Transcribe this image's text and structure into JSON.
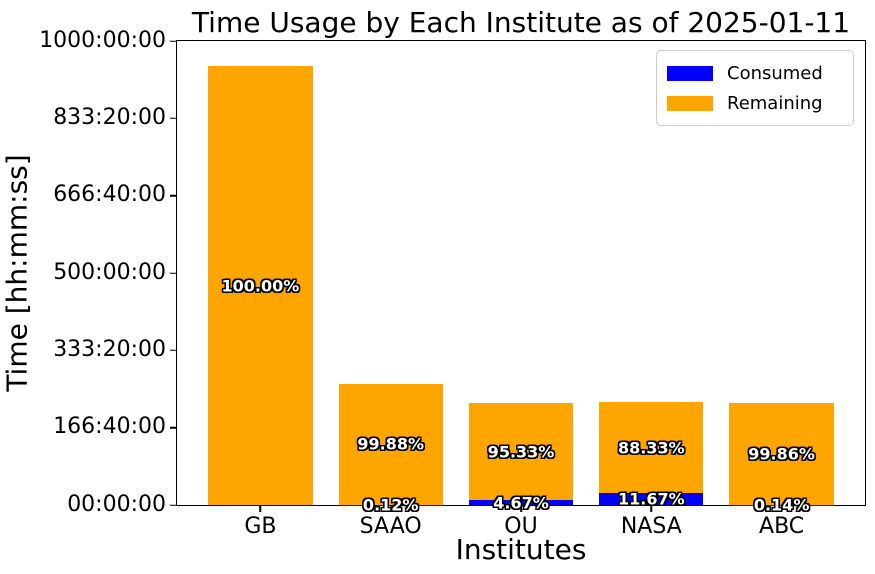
{
  "chart_data": {
    "type": "bar",
    "stacked": true,
    "title": "Time Usage by Each Institute as of 2025-01-11",
    "xlabel": "Institutes",
    "ylabel": "Time [hh:mm:ss]",
    "categories": [
      "GB",
      "SAAO",
      "OU",
      "NASA",
      "ABC"
    ],
    "series": [
      {
        "name": "Consumed",
        "color": "#0000ff",
        "percent": [
          0.0,
          0.12,
          4.67,
          11.67,
          0.14
        ],
        "percent_labels": [
          "",
          "0.12%",
          "4.67%",
          "11.67%",
          "0.14%"
        ],
        "values_hours": [
          0.0,
          0.31,
          10.27,
          25.91,
          0.31
        ]
      },
      {
        "name": "Remaining",
        "color": "#ffa500",
        "percent": [
          100.0,
          99.88,
          95.33,
          88.33,
          99.86
        ],
        "percent_labels": [
          "100.00%",
          "99.88%",
          "95.33%",
          "88.33%",
          "99.86%"
        ],
        "values_hours": [
          946.0,
          260.69,
          209.73,
          196.09,
          219.69
        ]
      }
    ],
    "totals_hours_estimated": [
      946,
      261,
      220,
      222,
      220
    ],
    "ylim_hours": [
      0,
      1000
    ],
    "yticks": [
      {
        "hours": 0,
        "label": "00:00:00"
      },
      {
        "hours": 166.6667,
        "label": "166:40:00"
      },
      {
        "hours": 333.3333,
        "label": "333:20:00"
      },
      {
        "hours": 500,
        "label": "500:00:00"
      },
      {
        "hours": 666.6667,
        "label": "666:40:00"
      },
      {
        "hours": 833.3333,
        "label": "833:20:00"
      },
      {
        "hours": 1000,
        "label": "1000:00:00"
      }
    ],
    "legend_position": "upper right",
    "grid": false,
    "bar_label_style": {
      "color": "#ffffff",
      "outline": "#000000",
      "bold": true
    }
  }
}
